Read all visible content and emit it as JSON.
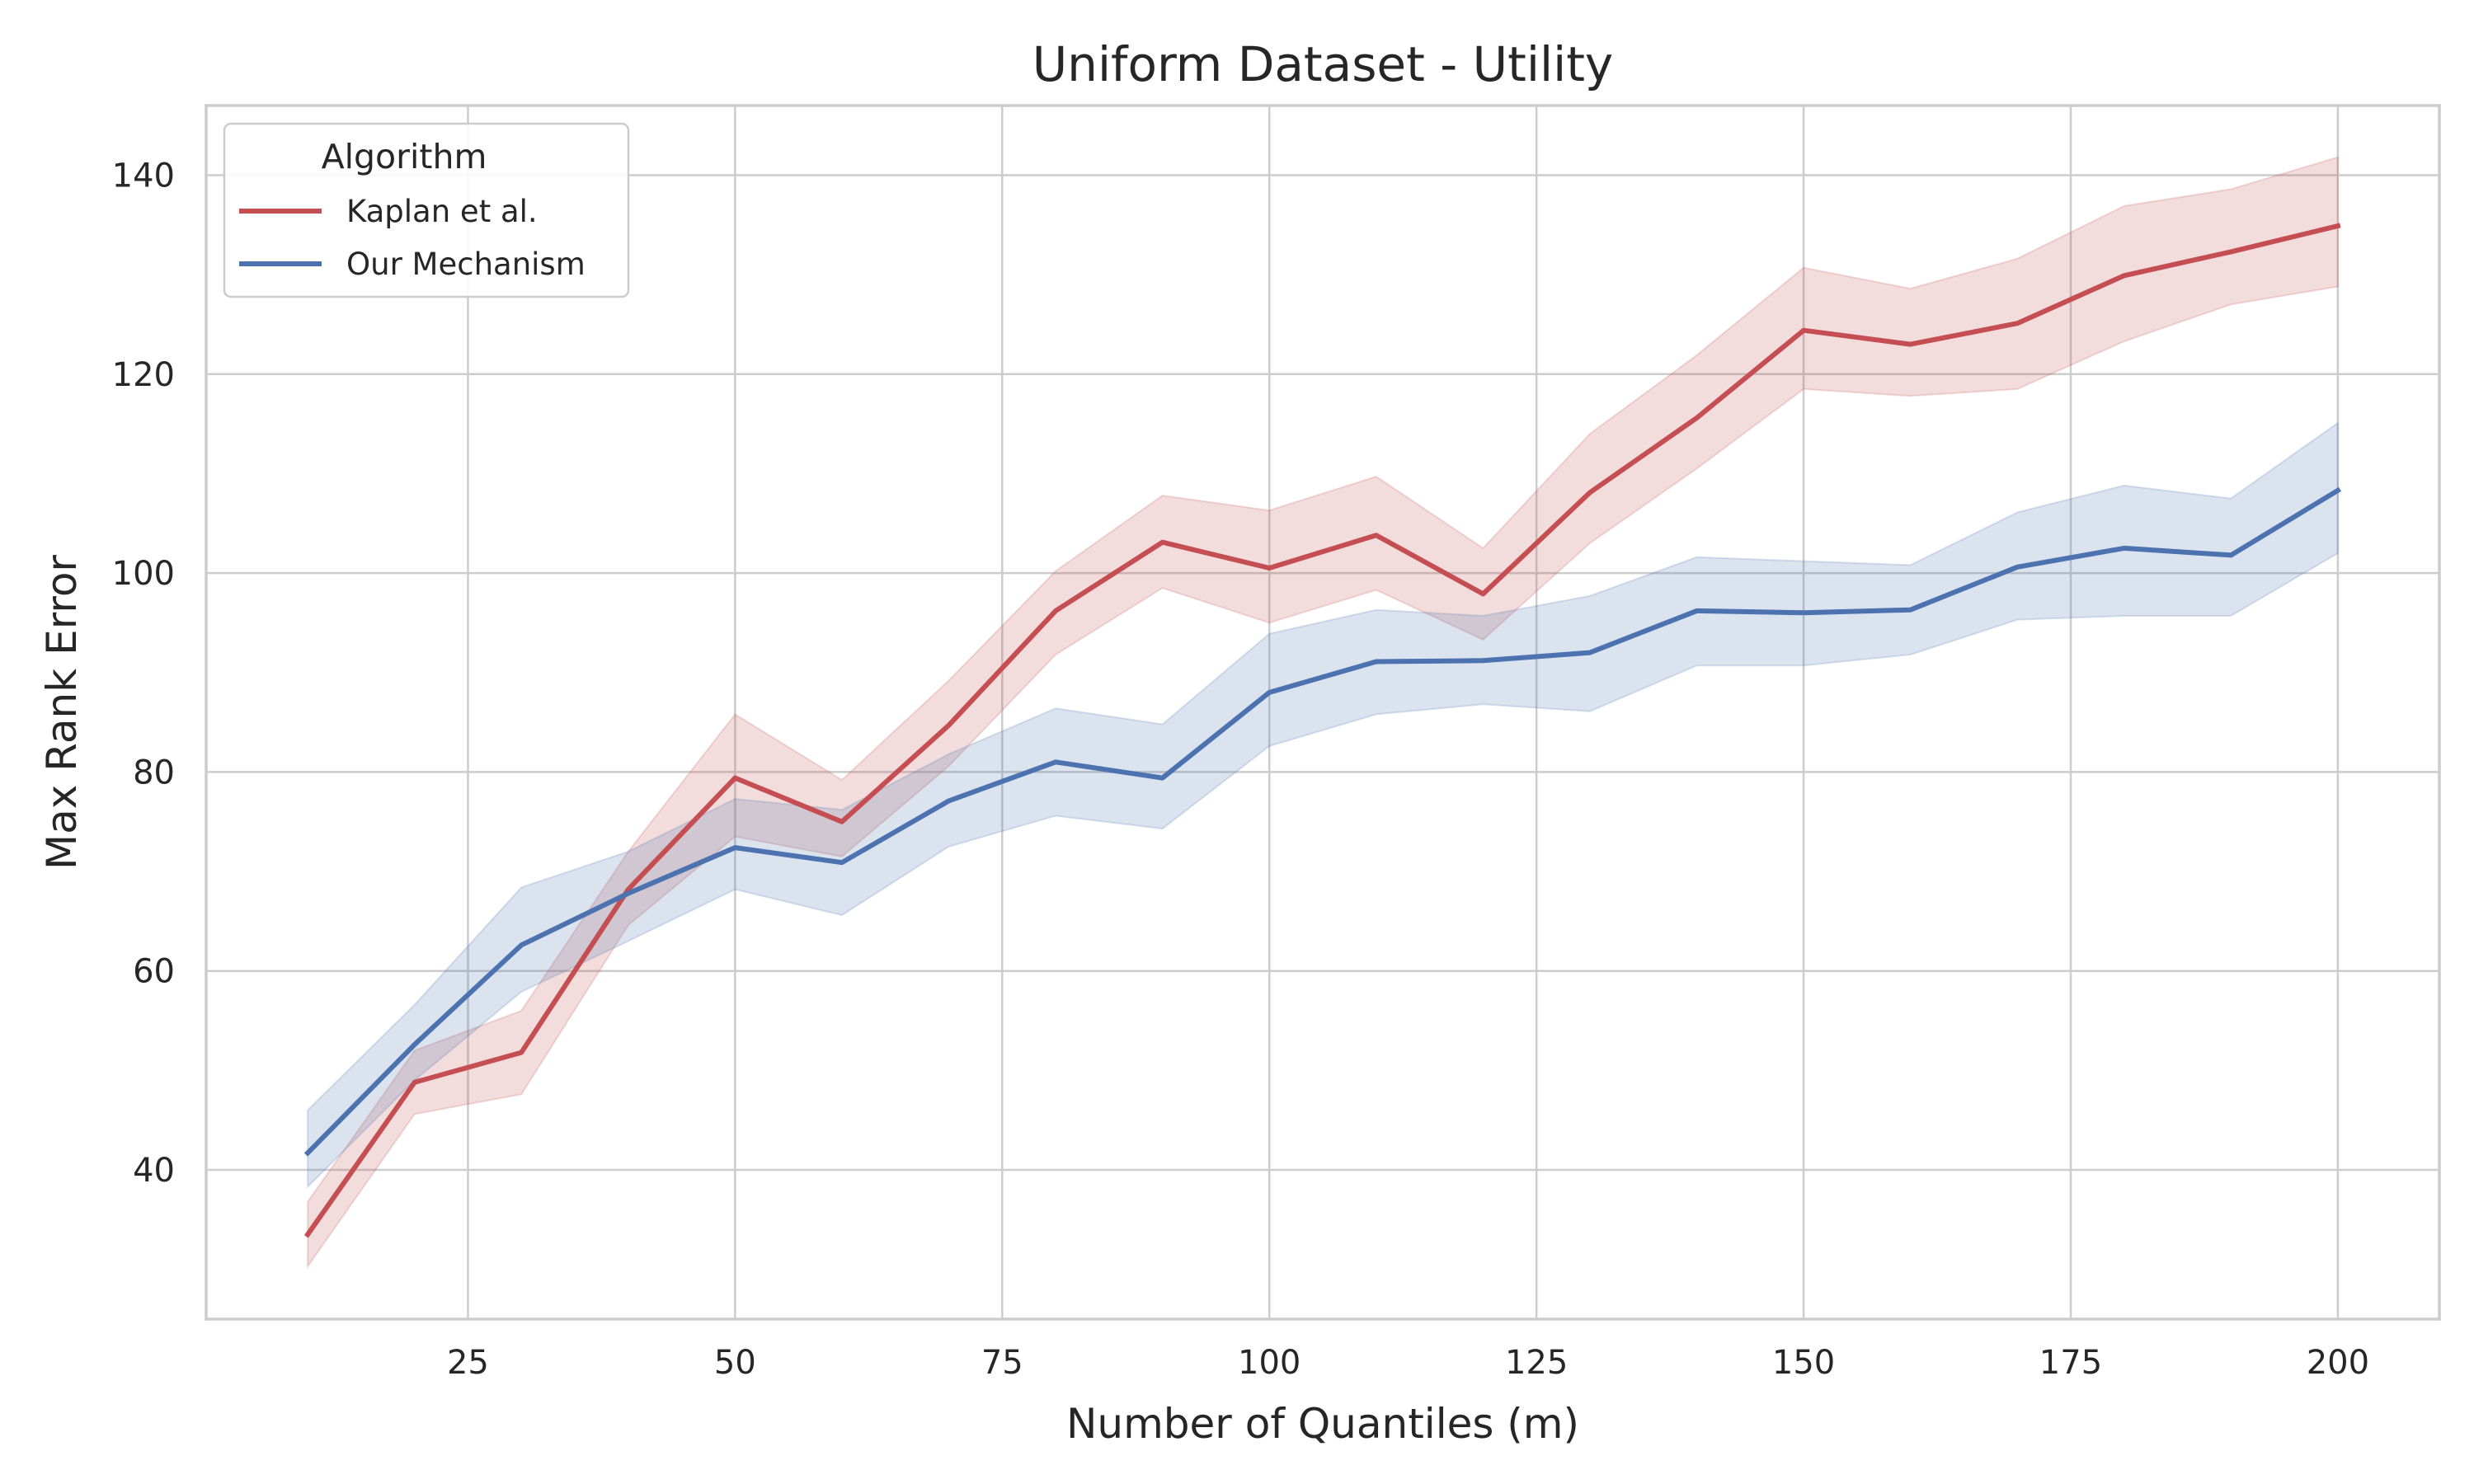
{
  "chart_data": {
    "type": "line",
    "title": "Uniform Dataset - Utility",
    "xlabel": "Number of Quantiles (m)",
    "ylabel": "Max Rank Error",
    "xlim": [
      0.5,
      209.5
    ],
    "ylim": [
      25,
      147
    ],
    "xticks": [
      25,
      50,
      75,
      100,
      125,
      150,
      175,
      200
    ],
    "yticks": [
      40,
      60,
      80,
      100,
      120,
      140
    ],
    "grid": true,
    "legend": {
      "title": "Algorithm",
      "placement": "top-left"
    },
    "x": [
      10,
      20,
      30,
      40,
      50,
      60,
      70,
      80,
      90,
      100,
      110,
      120,
      130,
      140,
      150,
      160,
      170,
      180,
      190,
      200
    ],
    "series": [
      {
        "name": "Kaplan et al.",
        "color": "#c44e52",
        "values": [
          33.5,
          48.8,
          51.8,
          68.2,
          79.4,
          75.0,
          84.7,
          96.2,
          103.1,
          100.5,
          103.8,
          97.9,
          108.1,
          115.6,
          124.4,
          123.0,
          125.1,
          129.9,
          132.3,
          134.9
        ],
        "lower": [
          30.3,
          45.6,
          47.6,
          64.6,
          73.5,
          71.5,
          80.6,
          91.8,
          98.5,
          95.0,
          98.3,
          93.3,
          103.0,
          110.5,
          118.5,
          117.8,
          118.5,
          123.3,
          127.0,
          128.8
        ],
        "upper": [
          36.8,
          52.0,
          56.0,
          72.0,
          85.8,
          79.2,
          89.2,
          100.2,
          107.8,
          106.3,
          109.7,
          102.5,
          114.0,
          121.9,
          130.7,
          128.6,
          131.6,
          136.9,
          138.6,
          141.8
        ]
      },
      {
        "name": "Our Mechanism",
        "color": "#4c72b0",
        "values": [
          41.7,
          52.6,
          62.6,
          67.8,
          72.4,
          70.9,
          77.1,
          81.0,
          79.4,
          88.0,
          91.1,
          91.2,
          92.0,
          96.2,
          96.0,
          96.3,
          100.6,
          102.5,
          101.8,
          108.3
        ],
        "lower": [
          38.3,
          49.0,
          57.9,
          63.0,
          68.2,
          65.6,
          72.5,
          75.6,
          74.3,
          82.6,
          85.8,
          86.8,
          86.1,
          90.7,
          90.7,
          91.8,
          95.3,
          95.7,
          95.7,
          102.0
        ],
        "upper": [
          46.0,
          56.6,
          68.4,
          72.0,
          77.3,
          76.2,
          81.8,
          86.4,
          84.8,
          93.9,
          96.3,
          95.7,
          97.7,
          101.6,
          101.2,
          100.8,
          106.1,
          108.8,
          107.5,
          115.1
        ]
      }
    ]
  }
}
